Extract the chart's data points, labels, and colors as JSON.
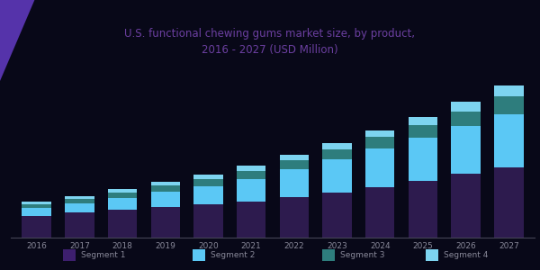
{
  "title_line1": "U.S. functional chewing gums market size, by product,",
  "title_line2": "2016 - 2027 (USD Million)",
  "title_color": "#6b3fa0",
  "years": [
    "2016",
    "2017",
    "2018",
    "2019",
    "2020",
    "2021",
    "2022",
    "2023",
    "2024",
    "2025",
    "2026",
    "2027"
  ],
  "segments": {
    "S1": [
      40,
      46,
      52,
      57,
      61,
      67,
      75,
      83,
      93,
      105,
      118,
      130
    ],
    "S2": [
      15,
      18,
      22,
      28,
      34,
      42,
      52,
      62,
      72,
      80,
      88,
      98
    ],
    "S3": [
      7,
      8,
      10,
      11,
      13,
      15,
      17,
      19,
      21,
      24,
      28,
      34
    ],
    "S4": [
      4,
      5,
      6,
      7,
      8,
      9,
      10,
      11,
      13,
      15,
      17,
      20
    ]
  },
  "colors": [
    "#2d1b4e",
    "#5bc8f5",
    "#2e7d7d",
    "#7dd4f0"
  ],
  "legend_colors": [
    "#3d1f6e",
    "#5bc8f5",
    "#2e7d7d",
    "#7dd4f0"
  ],
  "legend_labels": [
    "Segment 1",
    "Segment 2",
    "Segment 3",
    "Segment 4"
  ],
  "background_color": "#080818",
  "plot_bg_color": "#080818",
  "bar_width": 0.68,
  "ylim": [
    0,
    290
  ]
}
